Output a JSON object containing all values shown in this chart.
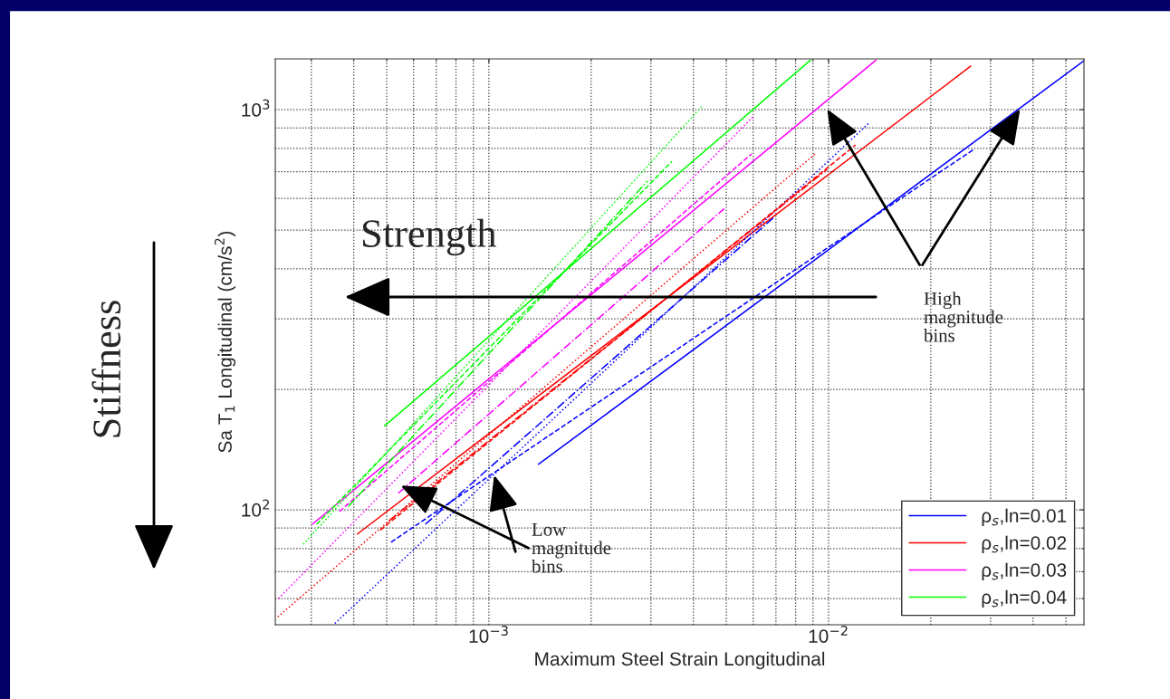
{
  "chart_data": {
    "type": "line",
    "xlabel": "Maximum Steel Strain Longitudinal",
    "ylabel": "Sa T$_{1}$ Longitudinal (cm/s$^{2}$)",
    "log": "xy",
    "grid": true,
    "legend": "bottom right",
    "xlim": [
      0.000235,
      0.0565
    ],
    "ylim": [
      51.6,
      1340
    ],
    "xticks": [
      {
        "value": 0.001,
        "label": "10$^{−3}$"
      },
      {
        "value": 0.01,
        "label": "10$^{−2}$"
      }
    ],
    "yticks": [
      {
        "value": 100,
        "label": "10$^{2}$"
      },
      {
        "value": 1000,
        "label": "10$^{3}$"
      }
    ],
    "series": [
      {
        "name": "ρ$_{s}$,ln=0.01",
        "color": "#0000ff",
        "line_style": "solid",
        "x": [
          0.0014,
          0.0565
        ],
        "values": [
          130,
          1325
        ]
      },
      {
        "name": "ρ$_{s}$,ln=0.02",
        "color": "#ff0000",
        "line_style": "solid",
        "x": [
          0.00041,
          0.0262
        ],
        "values": [
          87,
          1285
        ]
      },
      {
        "name": "ρ$_{s}$,ln=0.03",
        "color": "#ff00ff",
        "line_style": "solid",
        "x": [
          0.000302,
          0.0138
        ],
        "values": [
          92,
          1330
        ]
      },
      {
        "name": "ρ$_{s}$,ln=0.04",
        "color": "#00ff00",
        "line_style": "solid",
        "x": [
          0.000493,
          0.00885
        ],
        "values": [
          162,
          1330
        ]
      },
      {
        "color": "#0000ff",
        "line_style": "dashed",
        "x": [
          0.000515,
          0.0267
        ],
        "values": [
          83,
          795
        ]
      },
      {
        "color": "#0000ff",
        "line_style": "dashdot",
        "x": [
          0.00065,
          0.0069
        ],
        "values": [
          92,
          538
        ]
      },
      {
        "color": "#0000ff",
        "line_style": "dotted",
        "x": [
          0.000352,
          0.0132
        ],
        "values": [
          52,
          929
        ]
      },
      {
        "color": "#ff0000",
        "line_style": "dashed",
        "x": [
          0.000479,
          0.012
        ],
        "values": [
          89,
          816
        ]
      },
      {
        "color": "#ff0000",
        "line_style": "dashdot",
        "x": [
          0.000509,
          0.0099
        ],
        "values": [
          94,
          709
        ]
      },
      {
        "color": "#ff0000",
        "line_style": "dotted",
        "x": [
          0.000239,
          0.00912
        ],
        "values": [
          54,
          775
        ]
      },
      {
        "color": "#ff00ff",
        "line_style": "dashed",
        "x": [
          0.000363,
          0.00593
        ],
        "values": [
          99,
          775
        ]
      },
      {
        "color": "#ff00ff",
        "line_style": "dashdot",
        "x": [
          0.000541,
          0.00493
        ],
        "values": [
          110,
          566
        ]
      },
      {
        "color": "#ff00ff",
        "line_style": "dotted",
        "x": [
          0.00024,
          0.00605
        ],
        "values": [
          60,
          968
        ]
      },
      {
        "color": "#00ff00",
        "line_style": "dashed",
        "x": [
          0.000311,
          0.00346
        ],
        "values": [
          92,
          743
        ]
      },
      {
        "color": "#00ff00",
        "line_style": "dashdot",
        "x": [
          0.000386,
          0.00293
        ],
        "values": [
          102,
          663
        ]
      },
      {
        "color": "#00ff00",
        "line_style": "dotted",
        "x": [
          0.000284,
          0.00424
        ],
        "values": [
          82,
          1020
        ]
      }
    ],
    "annotations": [
      "Strength",
      "Stiffness",
      "High\nmagnitude\nbins",
      {
        "text": "Low\nmagnitude\nbins",
        "x": 0.00055,
        "y": 115
      }
    ]
  }
}
